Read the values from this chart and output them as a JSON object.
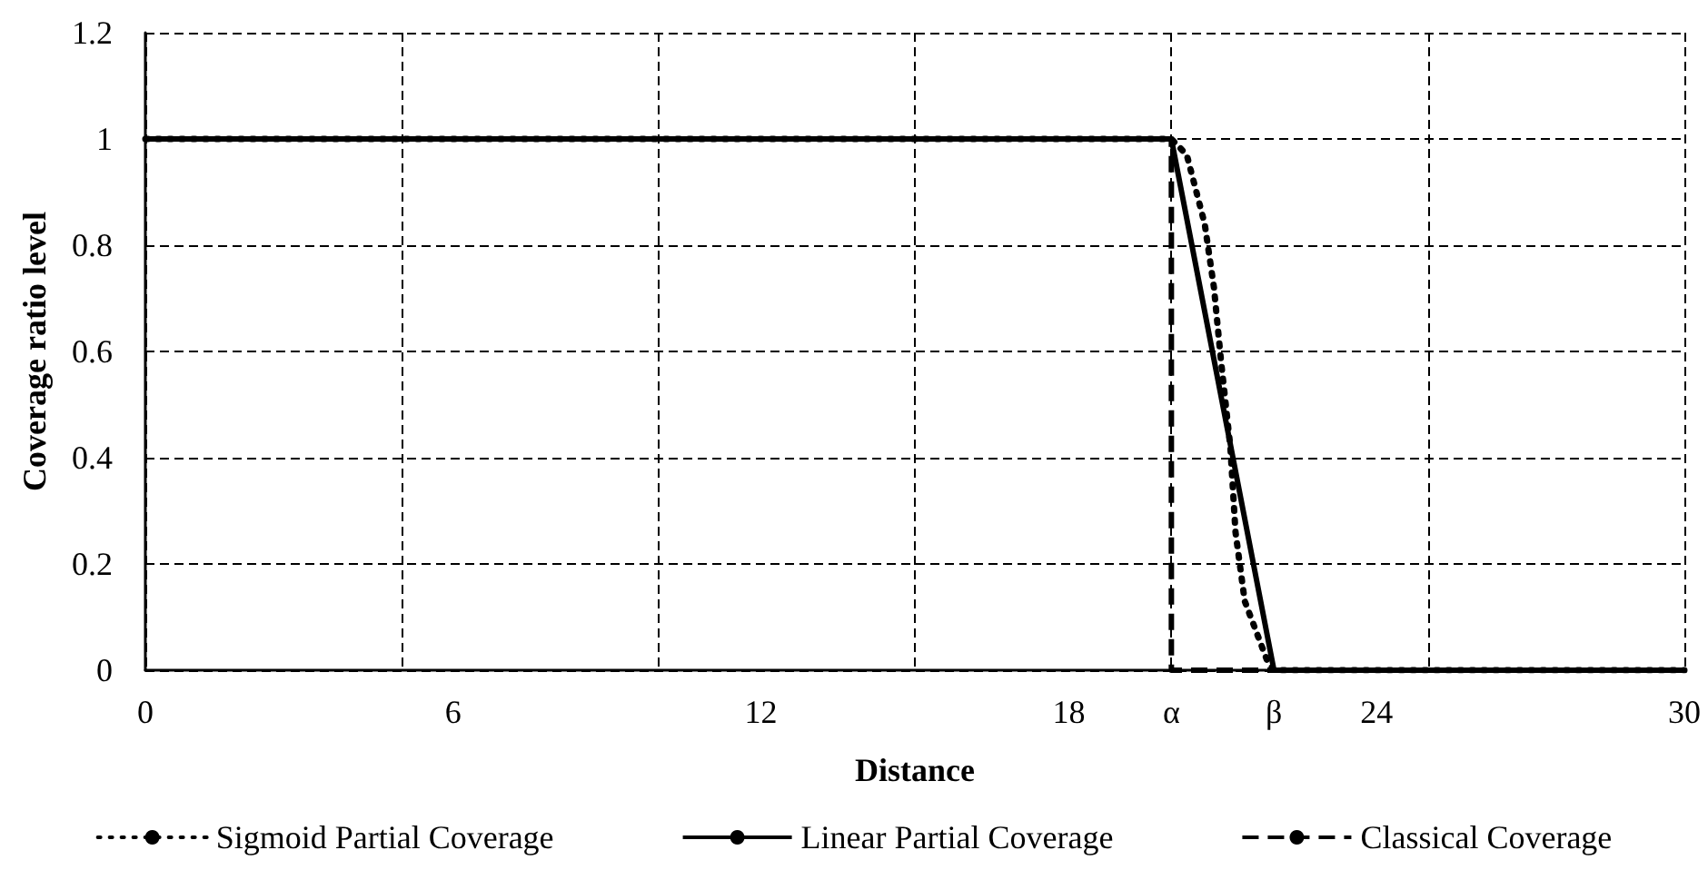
{
  "chart_data": {
    "type": "line",
    "xlabel": "Distance",
    "ylabel": "Coverage ratio level",
    "xlim": [
      0,
      30
    ],
    "xticks": [
      0,
      6,
      12,
      18,
      {
        "value": 20,
        "label": "α"
      },
      {
        "value": 22,
        "label": "β"
      },
      24,
      30
    ],
    "ylim": [
      0,
      1.2
    ],
    "yticks": [
      0,
      0.2,
      0.4,
      0.6,
      0.8,
      1,
      1.2
    ],
    "grid": true,
    "legend": "bottom",
    "marker": "none",
    "series": [
      {
        "name": "Sigmoid Partial Coverage",
        "color": "#000000",
        "line_style": "dotted",
        "x": [
          0,
          20,
          20.3,
          20.65,
          20.83,
          20.97,
          21.15,
          21.25,
          21.43,
          21.86,
          22,
          30
        ],
        "values": [
          1,
          1,
          0.97,
          0.84,
          0.72,
          0.58,
          0.42,
          0.26,
          0.13,
          0.02,
          0,
          0
        ]
      },
      {
        "name": "Linear Partial Coverage",
        "color": "#000000",
        "line_style": "solid",
        "x": [
          0,
          20,
          22,
          30
        ],
        "values": [
          1,
          1,
          0,
          0
        ]
      },
      {
        "name": "Classical Coverage",
        "color": "#000000",
        "line_style": "dashed",
        "x": [
          0,
          20,
          20,
          30
        ],
        "values": [
          1,
          1,
          0,
          0
        ]
      }
    ]
  }
}
